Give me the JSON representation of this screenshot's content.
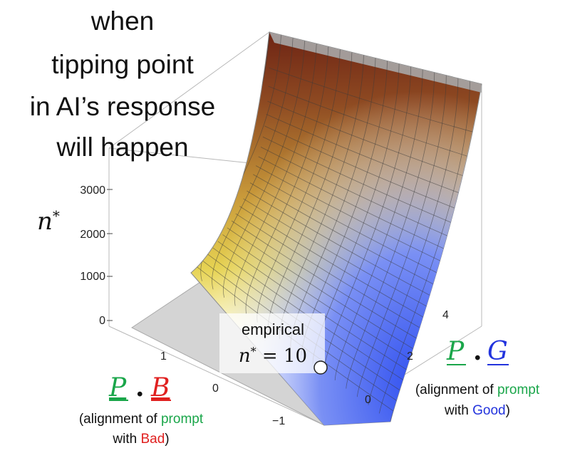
{
  "chart_data": {
    "type": "surface-3d",
    "title_lines": [
      "when",
      "tipping point",
      "in AI’s response",
      "will happen"
    ],
    "z_axis": {
      "label": "n*",
      "ticks": [
        "0",
        "1000",
        "2000",
        "3000"
      ],
      "range": [
        0,
        4000
      ]
    },
    "x_axis": {
      "label_left": "P",
      "label_dot": ".",
      "label_right": "B",
      "caption_line1_prefix": "(alignment of ",
      "caption_line1_colored": "prompt",
      "caption_line2_prefix": "with ",
      "caption_line2_colored": "Bad",
      "caption_line2_suffix": ")",
      "ticks": [
        "1",
        "0",
        "−1"
      ],
      "range": [
        -1.5,
        1.5
      ]
    },
    "y_axis": {
      "label_left": "P",
      "label_dot": ".",
      "label_right": "G",
      "caption_line1_prefix": "(alignment of ",
      "caption_line1_colored": "prompt",
      "caption_line2_prefix": "with ",
      "caption_line2_colored": "Good",
      "caption_line2_suffix": ")",
      "ticks": [
        "0",
        "2",
        "4"
      ],
      "range": [
        -1,
        5
      ]
    },
    "annotation": {
      "line1": "empirical",
      "line2": "n* = 10",
      "value": 10
    },
    "colors": {
      "prompt": "#1aa64a",
      "bad": "#e0201f",
      "good": "#2233dd",
      "surface_high": "#7a2d18",
      "surface_mid": "#d8b83a",
      "surface_low": "#fffde6",
      "surface_blue": "#3355ee",
      "floor": "#d6d6d6"
    }
  }
}
